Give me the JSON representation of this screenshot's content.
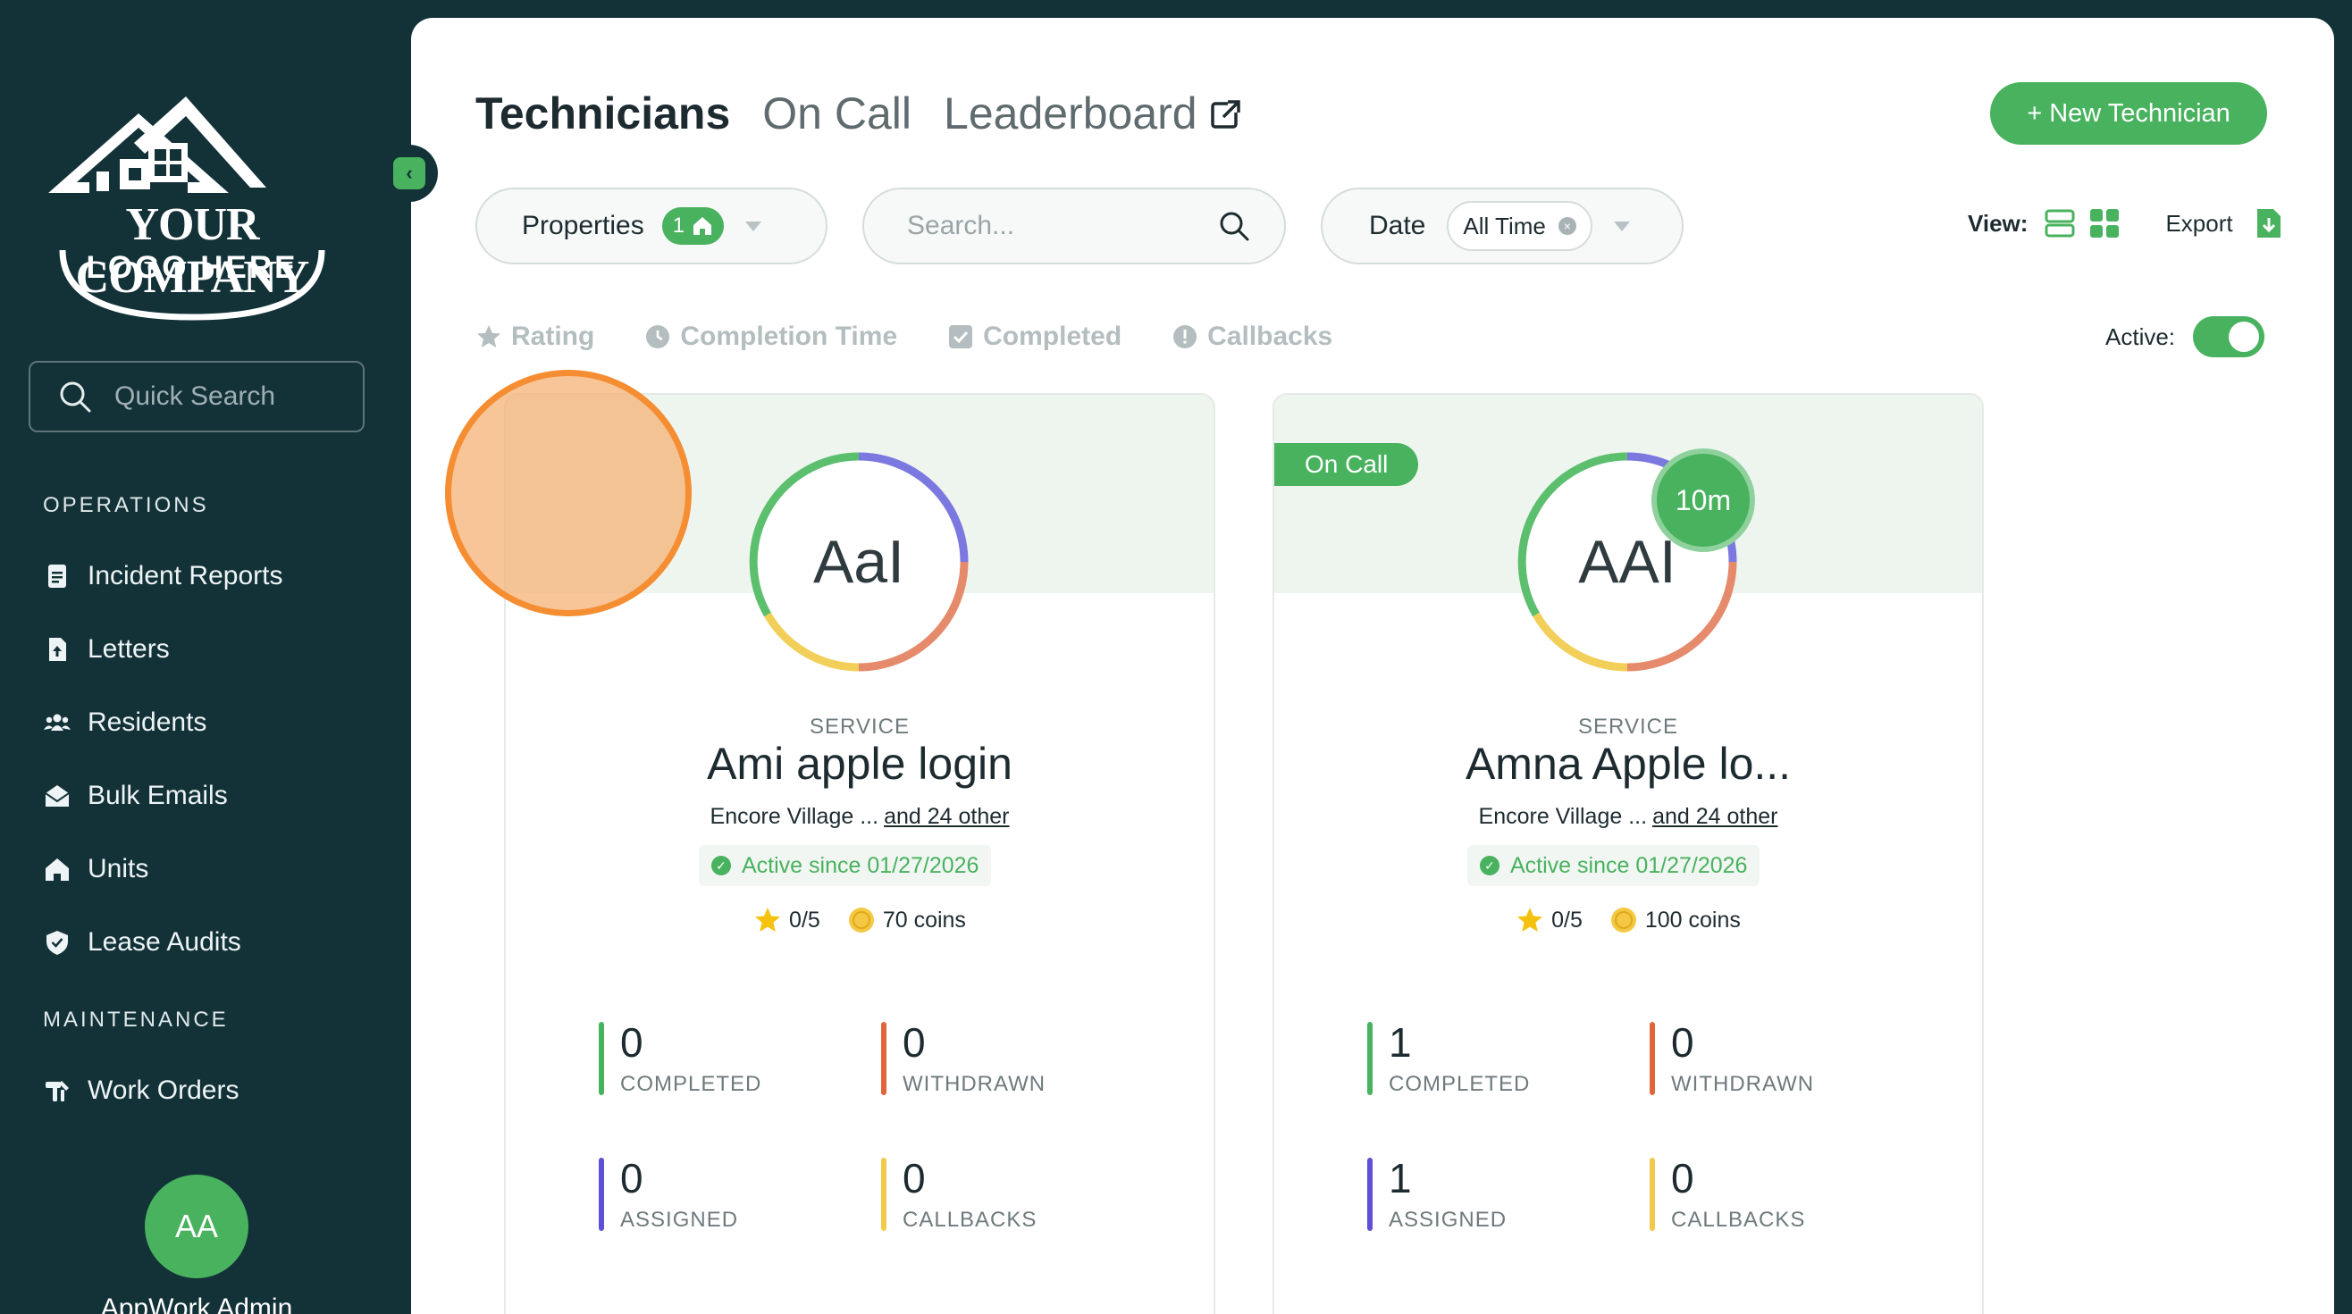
{
  "sidebar": {
    "logo": {
      "line1": "YOUR COMPANY",
      "line2": "LOGO HERE"
    },
    "quick_search_placeholder": "Quick Search",
    "sections": [
      {
        "title": "OPERATIONS",
        "items": [
          "Incident Reports",
          "Letters",
          "Residents",
          "Bulk Emails",
          "Units",
          "Lease Audits"
        ]
      },
      {
        "title": "MAINTENANCE",
        "items": [
          "Work Orders"
        ]
      }
    ],
    "user": {
      "initials": "AA",
      "name": "AppWork Admin"
    }
  },
  "header": {
    "tabs": [
      {
        "label": "Technicians",
        "active": true
      },
      {
        "label": "On Call",
        "active": false
      },
      {
        "label": "Leaderboard",
        "active": false,
        "external": true
      }
    ],
    "new_button": "+ New Technician"
  },
  "filters": {
    "properties": {
      "label": "Properties",
      "count": "1"
    },
    "search_placeholder": "Search...",
    "date": {
      "label": "Date",
      "value": "All Time"
    },
    "view_label": "View:",
    "export_label": "Export"
  },
  "sort_options": [
    "Rating",
    "Completion Time",
    "Completed",
    "Callbacks"
  ],
  "active_filter": {
    "label": "Active:",
    "on": true
  },
  "technicians": [
    {
      "initials": "AaI",
      "role": "SERVICE",
      "name": "Ami apple login",
      "property": "Encore Village ...",
      "others": "and 24 other",
      "since": "Active since 01/27/2026",
      "rating": "0/5",
      "coins": "70 coins",
      "on_call": false,
      "badge": "",
      "stats": {
        "completed": "0",
        "withdrawn": "0",
        "assigned": "0",
        "callbacks": "0"
      }
    },
    {
      "initials": "AAI",
      "role": "SERVICE",
      "name": "Amna Apple lo...",
      "property": "Encore Village ...",
      "others": "and 24 other",
      "since": "Active since 01/27/2026",
      "rating": "0/5",
      "coins": "100 coins",
      "on_call": true,
      "on_call_label": "On Call",
      "badge": "10m",
      "stats": {
        "completed": "1",
        "withdrawn": "0",
        "assigned": "1",
        "callbacks": "0"
      }
    }
  ],
  "stat_labels": {
    "completed": "COMPLETED",
    "withdrawn": "WITHDRAWN",
    "assigned": "ASSIGNED",
    "callbacks": "CALLBACKS"
  },
  "colors": {
    "sidebar_bg": "#133238",
    "accent_green": "#48b25e",
    "completed": "#48b25e",
    "withdrawn": "#e0663a",
    "assigned": "#5d4fd6",
    "callbacks": "#f2c94c"
  }
}
